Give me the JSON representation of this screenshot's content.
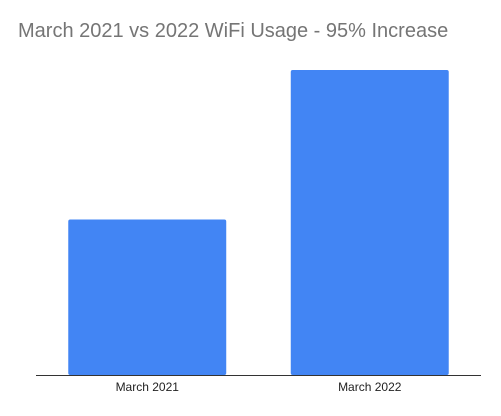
{
  "chart_data": {
    "type": "bar",
    "title": "March 2021 vs 2022 WiFi Usage - 95% Increase",
    "categories": [
      "March 2021",
      "March 2022"
    ],
    "values": [
      51,
      100
    ],
    "xlabel": "",
    "ylabel": "",
    "ylim": [
      0,
      100
    ],
    "grid": false,
    "bar_color": "#4285f4",
    "axis_color": "#333333",
    "title_color": "#757575"
  }
}
